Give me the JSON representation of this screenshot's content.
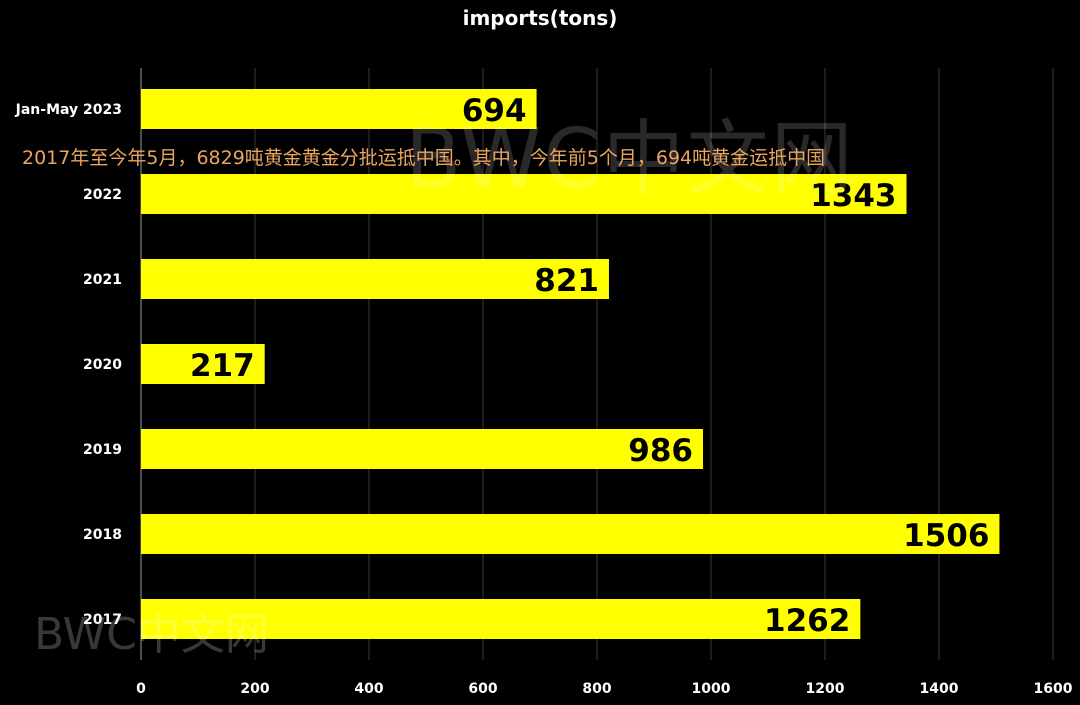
{
  "chart_data": {
    "type": "bar",
    "orientation": "horizontal",
    "title": "imports(tons)",
    "categories": [
      "Jan-May 2023",
      "2022",
      "2021",
      "2020",
      "2019",
      "2018",
      "2017"
    ],
    "values": [
      694,
      1343,
      821,
      217,
      986,
      1506,
      1262
    ],
    "xlim": [
      0,
      1600
    ],
    "xticks": [
      0,
      200,
      400,
      600,
      800,
      1000,
      1200,
      1400,
      1600
    ],
    "grid": "vertical",
    "bar_color": "#ffff00",
    "label_color": "#000000",
    "annotation": "2017年至今年5月，6829吨黄金黄金分批运抵中国。其中，今年前5个月，694吨黄金运抵中国"
  },
  "watermark": "BWC中文网",
  "colors": {
    "background": "#000000",
    "grid": "#3a3a3a",
    "annotation": "#e8a55f"
  }
}
